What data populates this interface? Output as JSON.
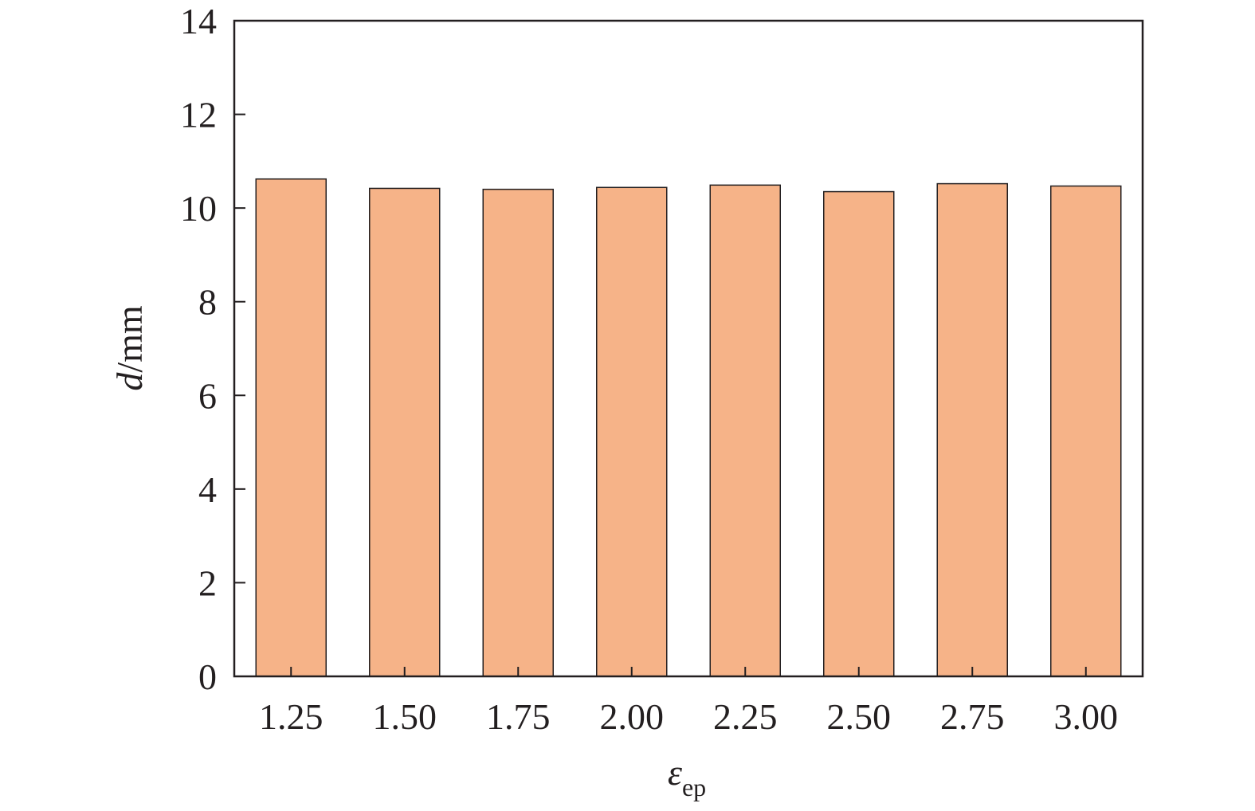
{
  "chart_data": {
    "type": "bar",
    "categories": [
      "1.25",
      "1.50",
      "1.75",
      "2.00",
      "2.25",
      "2.50",
      "2.75",
      "3.00"
    ],
    "values": [
      10.62,
      10.42,
      10.4,
      10.44,
      10.49,
      10.35,
      10.52,
      10.47
    ],
    "title": "",
    "xlabel": {
      "main": "ε",
      "sub": "ep"
    },
    "ylabel": {
      "var": "d",
      "unit": "/mm"
    },
    "ylim": [
      0,
      14
    ],
    "yticks": [
      "0",
      "2",
      "4",
      "6",
      "8",
      "10",
      "12",
      "14"
    ],
    "grid": false,
    "legend": "none",
    "colors": {
      "bar_fill": "#f6b388",
      "bar_stroke": "#231f20",
      "axis": "#231f20"
    }
  }
}
